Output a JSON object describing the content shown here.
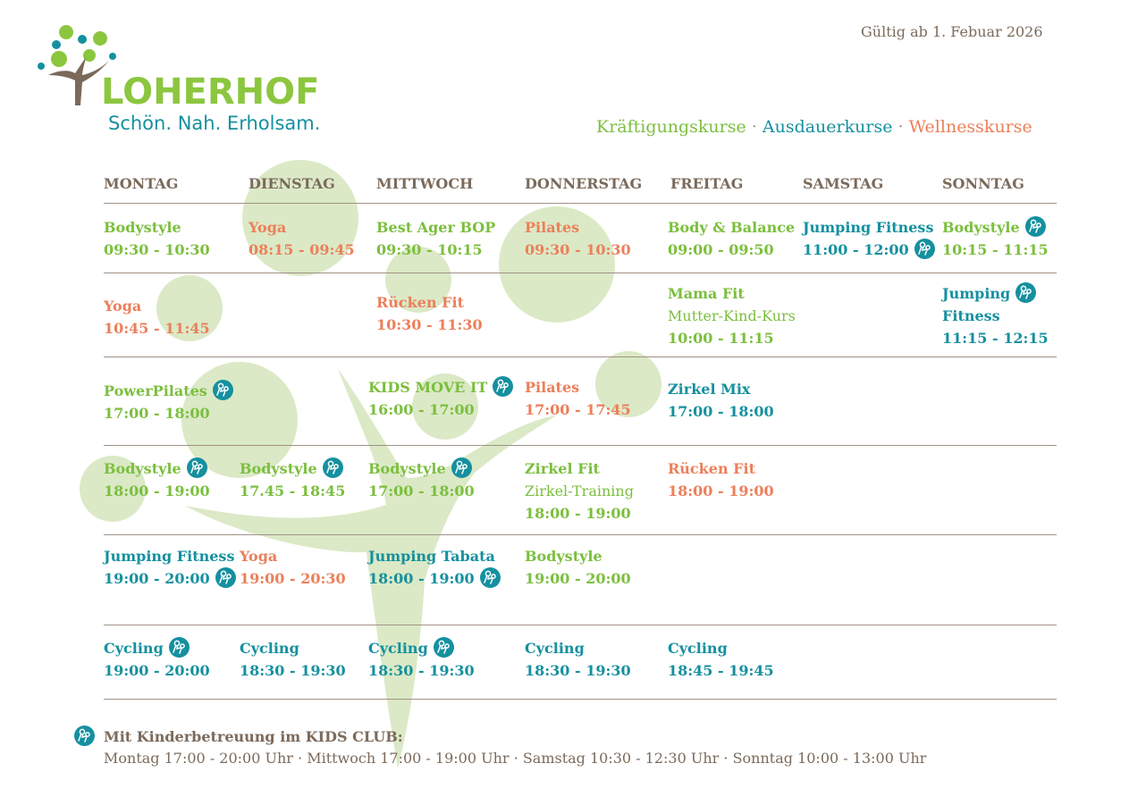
{
  "header": {
    "validity": "Gültig ab 1. Febuar 2026",
    "brand": "LOHERHOF",
    "slogan": "Schön. Nah. Erholsam.",
    "legend": {
      "strength": "Kräftigungskurse",
      "endurance": "Ausdauerkurse",
      "wellness": "Wellnesskurse",
      "separator": " · "
    }
  },
  "colors": {
    "strength": "#7bbf3d",
    "endurance": "#15909f",
    "wellness": "#ec7f5a",
    "text": "#7b6a5b",
    "circle": "#dbe9c6"
  },
  "days": [
    "MONTAG",
    "DIENSTAG",
    "MITTWOCH",
    "DONNERSTAG",
    "FREITAG",
    "SAMSTAG",
    "SONNTAG"
  ],
  "courses": [
    {
      "name": "Bodystyle",
      "time": "09:30 - 10:30",
      "cat": "strength"
    },
    {
      "name": "Yoga",
      "time": "08:15 - 09:45",
      "cat": "wellness"
    },
    {
      "name": "Best Ager BOP",
      "time": "09:30 - 10:15",
      "cat": "strength"
    },
    {
      "name": "Pilates",
      "time": "09:30 - 10:30",
      "cat": "wellness"
    },
    {
      "name": "Body & Balance",
      "time": "09:00 - 09:50",
      "cat": "strength"
    },
    {
      "name": "Jumping Fitness",
      "time": "11:00 - 12:00",
      "cat": "endurance",
      "kids": true
    },
    {
      "name": "Bodystyle",
      "time": "10:15 - 11:15",
      "cat": "strength",
      "kids": true
    },
    {
      "name": "Yoga",
      "time": "10:45 - 11:45",
      "cat": "wellness"
    },
    {
      "name": "Rücken Fit",
      "time": "10:30 - 11:30",
      "cat": "wellness"
    },
    {
      "name": "Mama Fit",
      "subtitle": "Mutter-Kind-Kurs",
      "time": "10:00 - 11:15",
      "cat": "strength"
    },
    {
      "name": "Jumping",
      "name2": "Fitness",
      "time": "11:15 - 12:15",
      "cat": "endurance",
      "kids": true
    },
    {
      "name": "PowerPilates",
      "time": "17:00 - 18:00",
      "cat": "strength",
      "kids": true
    },
    {
      "name": "KIDS MOVE IT",
      "time": "16:00 - 17:00",
      "cat": "strength",
      "kids": true
    },
    {
      "name": "Pilates",
      "time": "17:00 - 17:45",
      "cat": "wellness"
    },
    {
      "name": "Zirkel Mix",
      "time": "17:00 - 18:00",
      "cat": "endurance"
    },
    {
      "name": "Bodystyle",
      "time": "18:00 - 19:00",
      "cat": "strength",
      "kids": true
    },
    {
      "name": "Bodystyle",
      "time": "17.45 - 18:45",
      "cat": "strength",
      "kids": true
    },
    {
      "name": "Bodystyle",
      "time": "17:00 - 18:00",
      "cat": "strength",
      "kids": true
    },
    {
      "name": "Zirkel Fit",
      "subtitle": "Zirkel-Training",
      "time": "18:00 - 19:00",
      "cat": "strength"
    },
    {
      "name": "Rücken Fit",
      "time": "18:00 - 19:00",
      "cat": "wellness"
    },
    {
      "name": "Jumping Fitness",
      "time": "19:00 - 20:00",
      "cat": "endurance",
      "kids": true
    },
    {
      "name": "Yoga",
      "time": "19:00 - 20:30",
      "cat": "wellness"
    },
    {
      "name": "Jumping Tabata",
      "time": "18:00 - 19:00",
      "cat": "endurance",
      "kids": true
    },
    {
      "name": "Bodystyle",
      "time": "19:00 - 20:00",
      "cat": "strength"
    },
    {
      "name": "Cycling",
      "time": "19:00 - 20:00",
      "cat": "endurance",
      "kids": true
    },
    {
      "name": "Cycling",
      "time": "18:30 - 19:30",
      "cat": "endurance"
    },
    {
      "name": "Cycling",
      "time": "18:30 - 19:30",
      "cat": "endurance",
      "kids": true
    },
    {
      "name": "Cycling",
      "time": "18:30 - 19:30",
      "cat": "endurance"
    },
    {
      "name": "Cycling",
      "time": "18:45 - 19:45",
      "cat": "endurance"
    }
  ],
  "footer": {
    "title": "Mit Kinderbetreuung im KIDS CLUB:",
    "text": "Montag 17:00 - 20:00 Uhr · Mittwoch 17:00 - 19:00 Uhr · Samstag 10:30 - 12:30 Uhr · Sonntag 10:00 - 13:00 Uhr"
  }
}
